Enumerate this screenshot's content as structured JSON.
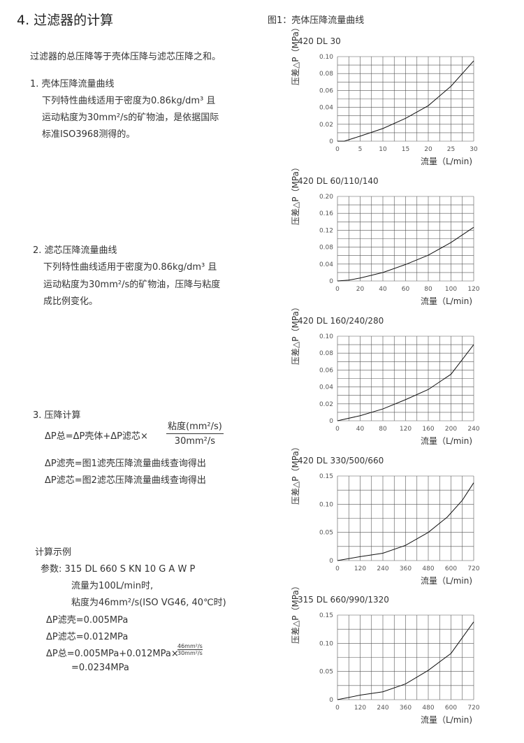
{
  "section_title": "4. 过滤器的计算",
  "intro": "过滤器的总压降等于壳体压降与滤芯压降之和。",
  "part1": {
    "heading": "1. 壳体压降流量曲线",
    "lines": [
      "下列特性曲线适用于密度为0.86kg/dm³ 且",
      "运动粘度为30mm²/s的矿物油，是依据国际",
      "标准ISO3968测得的。"
    ]
  },
  "part2": {
    "heading": "2. 滤芯压降流量曲线",
    "lines": [
      "下列特性曲线适用于密度为0.86kg/dm³ 且",
      "运动粘度为30mm²/s的矿物油，压降与粘度",
      "成比例变化。"
    ]
  },
  "part3": {
    "heading": "3. 压降计算",
    "formula_left": "ΔP总=ΔP壳体+ΔP滤芯×",
    "formula_num": "粘度(mm²/s)",
    "formula_den": "30mm²/s",
    "lines": [
      "ΔP滤壳=图1滤壳压降流量曲线查询得出",
      "ΔP滤芯=图2滤芯压降流量曲线查询得出"
    ]
  },
  "example": {
    "heading": "计算示例",
    "params": "参数: 315 DL 660 S KN 10 G A W P",
    "flow": "流量为100L/min时,",
    "viscosity": "粘度为46mm²/s(ISO VG46, 40℃时)",
    "dp_housing": "ΔP滤壳=0.005MPa",
    "dp_element": "ΔP滤芯=0.012MPa",
    "dp_total_left": "ΔP总=0.005MPa+0.012MPa×",
    "dp_total_num": "46mm²/s",
    "dp_total_den": "30mm²/s",
    "result": "=0.0234MPa"
  },
  "figure_title": "图1：壳体压降流量曲线",
  "chart_data": [
    {
      "type": "line",
      "title": "420 DL 30",
      "xlabel": "流量（L/min)",
      "ylabel": "压差△P（MPa）",
      "xlim": [
        0,
        30
      ],
      "ylim": [
        0,
        0.1
      ],
      "xticks": [
        "0",
        "5",
        "10",
        "15",
        "20",
        "25",
        "30"
      ],
      "yticks": [
        "0",
        "0.02",
        "0.04",
        "0.06",
        "0.08",
        "0.10"
      ],
      "grid": true,
      "x": [
        0,
        1.5,
        5,
        10,
        15,
        20,
        25,
        30
      ],
      "y": [
        0,
        0,
        0.006,
        0.015,
        0.027,
        0.042,
        0.065,
        0.095
      ]
    },
    {
      "type": "line",
      "title": "420 DL 60/110/140",
      "xlabel": "流量（L/min)",
      "ylabel": "压差△P（MPa）",
      "xlim": [
        0,
        120
      ],
      "ylim": [
        0,
        0.2
      ],
      "xticks": [
        "0",
        "20",
        "40",
        "60",
        "80",
        "100",
        "120"
      ],
      "yticks": [
        "0",
        "0.04",
        "0.08",
        "0.12",
        "0.16",
        "0.20"
      ],
      "grid": true,
      "x": [
        0,
        10,
        20,
        40,
        60,
        80,
        100,
        120
      ],
      "y": [
        0,
        0.002,
        0.007,
        0.02,
        0.039,
        0.061,
        0.091,
        0.127
      ]
    },
    {
      "type": "line",
      "title": "420 DL 160/240/280",
      "xlabel": "流量（L/min)",
      "ylabel": "压差△P（MPa）",
      "xlim": [
        0,
        240
      ],
      "ylim": [
        0,
        0.1
      ],
      "xticks": [
        "0",
        "40",
        "80",
        "120",
        "160",
        "200",
        "240"
      ],
      "yticks": [
        "0",
        "0.02",
        "0.04",
        "0.06",
        "0.08",
        "0.10"
      ],
      "grid": true,
      "x": [
        0,
        40,
        80,
        120,
        160,
        200,
        240
      ],
      "y": [
        0,
        0.006,
        0.014,
        0.025,
        0.037,
        0.055,
        0.09
      ]
    },
    {
      "type": "line",
      "title": "420 DL 330/500/660",
      "xlabel": "流量（L/min)",
      "ylabel": "压差△P（MPa）",
      "xlim": [
        0,
        720
      ],
      "ylim": [
        0,
        0.15
      ],
      "xticks": [
        "0",
        "120",
        "240",
        "360",
        "480",
        "600",
        "720"
      ],
      "yticks": [
        "0",
        "0.05",
        "0.10",
        "0.15"
      ],
      "grid": true,
      "x": [
        0,
        120,
        240,
        360,
        480,
        580,
        660,
        720
      ],
      "y": [
        0,
        0.007,
        0.013,
        0.027,
        0.05,
        0.077,
        0.107,
        0.138
      ]
    },
    {
      "type": "line",
      "title": "315 DL 660/990/1320",
      "xlabel": "流量（L/min)",
      "ylabel": "压差△P（MPa）",
      "xlim": [
        0,
        720
      ],
      "ylim": [
        0,
        0.15
      ],
      "xticks": [
        "0",
        "120",
        "240",
        "360",
        "480",
        "600",
        "720"
      ],
      "yticks": [
        "0",
        "0.05",
        "0.10",
        "0.15"
      ],
      "grid": true,
      "x": [
        0,
        120,
        240,
        360,
        480,
        600,
        720
      ],
      "y": [
        0,
        0.008,
        0.014,
        0.028,
        0.052,
        0.082,
        0.138
      ]
    }
  ]
}
